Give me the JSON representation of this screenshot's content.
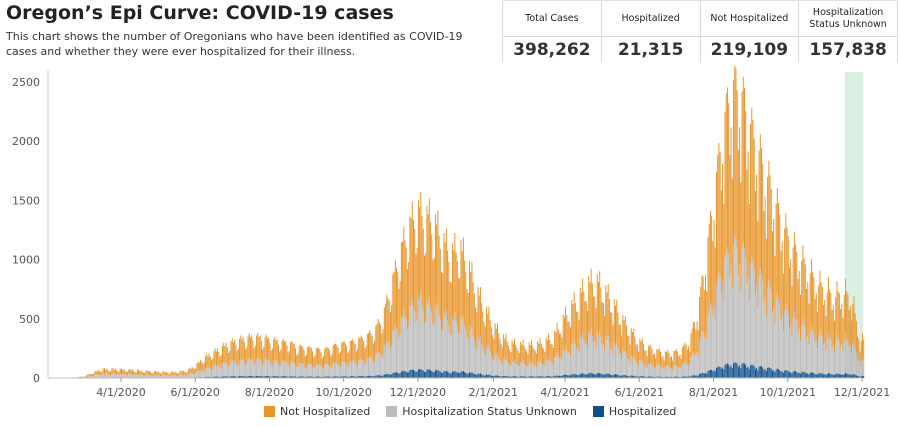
{
  "header": {
    "title": "Oregon’s Epi Curve: COVID-19 cases",
    "subtitle": "This chart shows the number of Oregonians who have been identified as COVID-19 cases and whether they were ever hospitalized for their illness."
  },
  "kpis": [
    {
      "label": "Total Cases",
      "value": "398,262"
    },
    {
      "label": "Hospitalized",
      "value": "21,315"
    },
    {
      "label": "Not Hospitalized",
      "value": "219,109"
    },
    {
      "label": "Hospitalization Status Unknown",
      "value": "157,838"
    }
  ],
  "colors": {
    "not_hospitalized": "#e8952b",
    "unknown": "#bcbcbc",
    "hospitalized": "#0f4f8a",
    "highlight": "#d9efe2"
  },
  "chart_data": {
    "type": "bar",
    "stacked": true,
    "x_unit": "day",
    "x_range": [
      "2020-02-01",
      "2021-12-01"
    ],
    "ylim": [
      0,
      2600
    ],
    "yticks": [
      0,
      500,
      1000,
      1500,
      2000,
      2500
    ],
    "xticks": [
      "4/1/2020",
      "6/1/2020",
      "8/1/2020",
      "10/1/2020",
      "12/1/2020",
      "2/1/2021",
      "4/1/2021",
      "6/1/2021",
      "8/1/2021",
      "10/1/2021",
      "12/1/2021"
    ],
    "highlight_range": [
      "2021-11-17",
      "2021-12-02"
    ],
    "grid": false,
    "legend_position": "bottom",
    "series": [
      {
        "name": "Not Hospitalized",
        "color": "#e8952b"
      },
      {
        "name": "Hospitalization Status Unknown",
        "color": "#bcbcbc"
      },
      {
        "name": "Hospitalized",
        "color": "#0f4f8a"
      }
    ],
    "weekly_total_cases": [
      {
        "week_start": "2020-02-24",
        "total": 5
      },
      {
        "week_start": "2020-03-02",
        "total": 15
      },
      {
        "week_start": "2020-03-09",
        "total": 45
      },
      {
        "week_start": "2020-03-16",
        "total": 70
      },
      {
        "week_start": "2020-03-23",
        "total": 70
      },
      {
        "week_start": "2020-03-30",
        "total": 68
      },
      {
        "week_start": "2020-04-06",
        "total": 65
      },
      {
        "week_start": "2020-04-13",
        "total": 60
      },
      {
        "week_start": "2020-04-20",
        "total": 55
      },
      {
        "week_start": "2020-04-27",
        "total": 50
      },
      {
        "week_start": "2020-05-04",
        "total": 48
      },
      {
        "week_start": "2020-05-11",
        "total": 45
      },
      {
        "week_start": "2020-05-18",
        "total": 50
      },
      {
        "week_start": "2020-05-25",
        "total": 60
      },
      {
        "week_start": "2020-06-01",
        "total": 100
      },
      {
        "week_start": "2020-06-08",
        "total": 160
      },
      {
        "week_start": "2020-06-15",
        "total": 200
      },
      {
        "week_start": "2020-06-22",
        "total": 240
      },
      {
        "week_start": "2020-06-29",
        "total": 280
      },
      {
        "week_start": "2020-07-06",
        "total": 300
      },
      {
        "week_start": "2020-07-13",
        "total": 320
      },
      {
        "week_start": "2020-07-20",
        "total": 330
      },
      {
        "week_start": "2020-07-27",
        "total": 320
      },
      {
        "week_start": "2020-08-03",
        "total": 300
      },
      {
        "week_start": "2020-08-10",
        "total": 290
      },
      {
        "week_start": "2020-08-17",
        "total": 280
      },
      {
        "week_start": "2020-08-24",
        "total": 250
      },
      {
        "week_start": "2020-08-31",
        "total": 240
      },
      {
        "week_start": "2020-09-07",
        "total": 230
      },
      {
        "week_start": "2020-09-14",
        "total": 220
      },
      {
        "week_start": "2020-09-21",
        "total": 250
      },
      {
        "week_start": "2020-09-28",
        "total": 270
      },
      {
        "week_start": "2020-10-05",
        "total": 280
      },
      {
        "week_start": "2020-10-12",
        "total": 300
      },
      {
        "week_start": "2020-10-19",
        "total": 330
      },
      {
        "week_start": "2020-10-26",
        "total": 380
      },
      {
        "week_start": "2020-11-02",
        "total": 500
      },
      {
        "week_start": "2020-11-09",
        "total": 750
      },
      {
        "week_start": "2020-11-16",
        "total": 1000
      },
      {
        "week_start": "2020-11-23",
        "total": 1200
      },
      {
        "week_start": "2020-11-30",
        "total": 1350
      },
      {
        "week_start": "2020-12-07",
        "total": 1300
      },
      {
        "week_start": "2020-12-14",
        "total": 1250
      },
      {
        "week_start": "2020-12-21",
        "total": 1100
      },
      {
        "week_start": "2020-12-28",
        "total": 1000
      },
      {
        "week_start": "2021-01-04",
        "total": 1050
      },
      {
        "week_start": "2021-01-11",
        "total": 900
      },
      {
        "week_start": "2021-01-18",
        "total": 700
      },
      {
        "week_start": "2021-01-25",
        "total": 550
      },
      {
        "week_start": "2021-02-01",
        "total": 420
      },
      {
        "week_start": "2021-02-08",
        "total": 330
      },
      {
        "week_start": "2021-02-15",
        "total": 280
      },
      {
        "week_start": "2021-02-22",
        "total": 270
      },
      {
        "week_start": "2021-03-01",
        "total": 260
      },
      {
        "week_start": "2021-03-08",
        "total": 270
      },
      {
        "week_start": "2021-03-15",
        "total": 290
      },
      {
        "week_start": "2021-03-22",
        "total": 330
      },
      {
        "week_start": "2021-03-29",
        "total": 450
      },
      {
        "week_start": "2021-04-05",
        "total": 560
      },
      {
        "week_start": "2021-04-12",
        "total": 650
      },
      {
        "week_start": "2021-04-19",
        "total": 750
      },
      {
        "week_start": "2021-04-26",
        "total": 780
      },
      {
        "week_start": "2021-05-03",
        "total": 700
      },
      {
        "week_start": "2021-05-10",
        "total": 600
      },
      {
        "week_start": "2021-05-17",
        "total": 480
      },
      {
        "week_start": "2021-05-24",
        "total": 380
      },
      {
        "week_start": "2021-05-31",
        "total": 300
      },
      {
        "week_start": "2021-06-07",
        "total": 250
      },
      {
        "week_start": "2021-06-14",
        "total": 220
      },
      {
        "week_start": "2021-06-21",
        "total": 200
      },
      {
        "week_start": "2021-06-28",
        "total": 200
      },
      {
        "week_start": "2021-07-05",
        "total": 220
      },
      {
        "week_start": "2021-07-12",
        "total": 300
      },
      {
        "week_start": "2021-07-19",
        "total": 550
      },
      {
        "week_start": "2021-07-26",
        "total": 1000
      },
      {
        "week_start": "2021-08-02",
        "total": 1500
      },
      {
        "week_start": "2021-08-09",
        "total": 2000
      },
      {
        "week_start": "2021-08-16",
        "total": 2300
      },
      {
        "week_start": "2021-08-23",
        "total": 2250
      },
      {
        "week_start": "2021-08-30",
        "total": 2000
      },
      {
        "week_start": "2021-09-06",
        "total": 1800
      },
      {
        "week_start": "2021-09-13",
        "total": 1600
      },
      {
        "week_start": "2021-09-20",
        "total": 1400
      },
      {
        "week_start": "2021-09-27",
        "total": 1200
      },
      {
        "week_start": "2021-10-04",
        "total": 1050
      },
      {
        "week_start": "2021-10-11",
        "total": 950
      },
      {
        "week_start": "2021-10-18",
        "total": 850
      },
      {
        "week_start": "2021-10-25",
        "total": 750
      },
      {
        "week_start": "2021-11-01",
        "total": 700
      },
      {
        "week_start": "2021-11-08",
        "total": 650
      },
      {
        "week_start": "2021-11-15",
        "total": 680
      },
      {
        "week_start": "2021-11-22",
        "total": 650
      },
      {
        "week_start": "2021-11-29",
        "total": 300
      }
    ],
    "hospitalized_fraction": 0.05,
    "not_hospitalized_fraction": 0.55
  }
}
